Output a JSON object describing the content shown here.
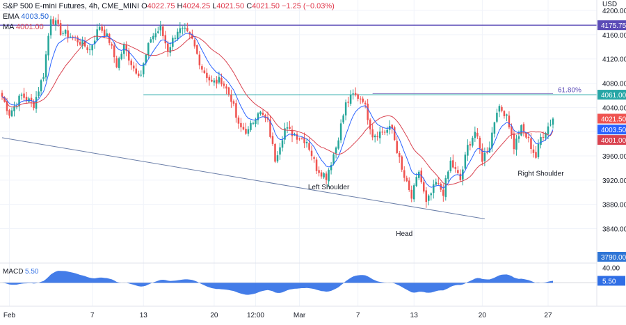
{
  "header": {
    "symbol": "S&P 500 E-mini Futures, 4h, CME_MINI",
    "open_label": "O",
    "open": "4022.75",
    "high_label": "H",
    "high": "4024.25",
    "low_label": "L",
    "low": "4021.50",
    "close_label": "C",
    "close": "4021.50",
    "change": "−1.25 (−0.03%)",
    "ema_label": "EMA",
    "ema_value": "4003.50",
    "ma_label": "MA",
    "ma_value": "4001.00",
    "currency": "USD"
  },
  "macd_panel": {
    "label": "MACD",
    "value": "5.50",
    "axis_tick": "40.00",
    "badge": "5.50"
  },
  "colors": {
    "up": "#26a69a",
    "down": "#ef5350",
    "ema": "#2962ff",
    "ma": "#d9424f",
    "resistance": "#5b4bb7",
    "neckline": "#26a6a6",
    "trendline": "#6a7ea8",
    "macd": "#2f6ee5"
  },
  "chart_data": {
    "type": "candlestick",
    "title": "S&P 500 E-mini Futures, 4h, CME_MINI",
    "y_axis": {
      "unit": "USD",
      "range": [
        3790,
        4215
      ],
      "ticks": [
        4200,
        4160,
        4120,
        4080,
        4040,
        4000,
        3960,
        3920,
        3880,
        3840
      ]
    },
    "x_axis": {
      "ticks": [
        "Feb",
        "7",
        "13",
        "20",
        "12:00",
        "Mar",
        "7",
        "13",
        "20",
        "27"
      ],
      "tick_index": [
        3,
        37,
        58,
        87,
        104,
        122,
        146,
        169,
        197,
        224
      ]
    },
    "anchors": [
      [
        0,
        4058
      ],
      [
        3,
        4030
      ],
      [
        8,
        4060
      ],
      [
        13,
        4045
      ],
      [
        17,
        4095
      ],
      [
        20,
        4190
      ],
      [
        24,
        4165
      ],
      [
        28,
        4158
      ],
      [
        32,
        4148
      ],
      [
        36,
        4135
      ],
      [
        40,
        4175
      ],
      [
        44,
        4150
      ],
      [
        47,
        4110
      ],
      [
        50,
        4140
      ],
      [
        54,
        4105
      ],
      [
        57,
        4095
      ],
      [
        61,
        4155
      ],
      [
        65,
        4170
      ],
      [
        68,
        4135
      ],
      [
        72,
        4168
      ],
      [
        75,
        4165
      ],
      [
        78,
        4150
      ],
      [
        82,
        4105
      ],
      [
        86,
        4080
      ],
      [
        90,
        4085
      ],
      [
        94,
        4055
      ],
      [
        97,
        4008
      ],
      [
        101,
        4000
      ],
      [
        105,
        4035
      ],
      [
        109,
        4015
      ],
      [
        112,
        3955
      ],
      [
        116,
        4005
      ],
      [
        120,
        3995
      ],
      [
        125,
        3985
      ],
      [
        129,
        3940
      ],
      [
        133,
        3926
      ],
      [
        137,
        3975
      ],
      [
        141,
        4045
      ],
      [
        144,
        4060
      ],
      [
        148,
        4055
      ],
      [
        152,
        3995
      ],
      [
        156,
        4000
      ],
      [
        160,
        4005
      ],
      [
        164,
        3935
      ],
      [
        168,
        3890
      ],
      [
        171,
        3935
      ],
      [
        174,
        3880
      ],
      [
        178,
        3915
      ],
      [
        181,
        3900
      ],
      [
        184,
        3950
      ],
      [
        188,
        3920
      ],
      [
        191,
        3975
      ],
      [
        194,
        4000
      ],
      [
        197,
        3955
      ],
      [
        200,
        3978
      ],
      [
        203,
        4038
      ],
      [
        207,
        4030
      ],
      [
        210,
        3975
      ],
      [
        213,
        4005
      ],
      [
        216,
        3985
      ],
      [
        219,
        3958
      ],
      [
        221,
        3990
      ],
      [
        226,
        4021.5
      ]
    ],
    "candle_count": 227,
    "series": [
      {
        "name": "EMA",
        "kind": "ema",
        "period": 9,
        "last": 4003.5
      },
      {
        "name": "MA",
        "kind": "sma",
        "period": 20,
        "last": 4001.0
      }
    ],
    "horizontal_lines": [
      {
        "name": "resistance",
        "value": 4175.75,
        "label": "4175.75"
      },
      {
        "name": "neckline",
        "value": 4061.0,
        "label": "4061.00"
      },
      {
        "name": "fib-61.8",
        "value": 4063.0,
        "label": "61.80%",
        "from_index": 152,
        "to_index": 226
      }
    ],
    "trendline": {
      "from": [
        0,
        3990
      ],
      "to": [
        198,
        3856
      ]
    },
    "price_badges": [
      {
        "name": "resistance-badge",
        "value": 4175.75,
        "label": "4175.75",
        "color": "#5b4bb7"
      },
      {
        "name": "neckline-badge",
        "value": 4061.0,
        "label": "4061.00",
        "color": "#26a6a6"
      },
      {
        "name": "close-badge",
        "value": 4021.5,
        "label": "4021.50",
        "color": "#ef5350"
      },
      {
        "name": "ema-badge",
        "value": 4003.5,
        "label": "4003.50",
        "color": "#2962ff"
      },
      {
        "name": "ma-badge",
        "value": 4001.0,
        "label": "4001.00",
        "color": "#d9424f"
      },
      {
        "name": "bottom-badge",
        "value": 3790.0,
        "label": "3790.00",
        "color": "#2e75d6"
      }
    ],
    "annotations": [
      {
        "text": "Left Shoulder",
        "index": 134,
        "value": 3905
      },
      {
        "text": "Head",
        "index": 165,
        "value": 3828
      },
      {
        "text": "Right Shoulder",
        "index": 221,
        "value": 3927
      }
    ],
    "macd": {
      "label": "MACD",
      "value": 5.5,
      "range": [
        -60,
        50
      ],
      "axis_tick_value": 40
    }
  }
}
